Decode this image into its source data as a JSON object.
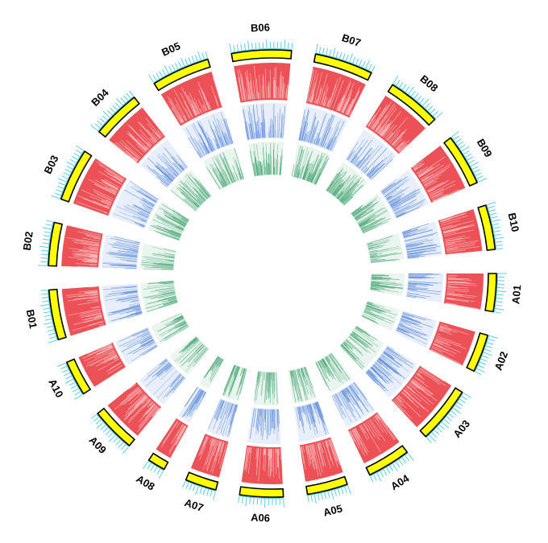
{
  "diagram": {
    "type": "circos",
    "colors": {
      "ideogram": "#ffff00",
      "ideogram_stroke": "#000000",
      "ticks": "#5fcde4",
      "track1": "#e8333a",
      "track2": "#4a7fd6",
      "track3": "#2f9a63"
    },
    "chromosomes": [
      {
        "label": "A01",
        "length": 28
      },
      {
        "label": "A02",
        "length": 28
      },
      {
        "label": "A03",
        "length": 42
      },
      {
        "label": "A04",
        "length": 32
      },
      {
        "label": "A05",
        "length": 30
      },
      {
        "label": "A06",
        "length": 32
      },
      {
        "label": "A07",
        "length": 23
      },
      {
        "label": "A08",
        "length": 13
      },
      {
        "label": "A09",
        "length": 33
      },
      {
        "label": "A10",
        "length": 26
      },
      {
        "label": "B01",
        "length": 37
      },
      {
        "label": "B02",
        "length": 32
      },
      {
        "label": "B03",
        "length": 39
      },
      {
        "label": "B04",
        "length": 36
      },
      {
        "label": "B05",
        "length": 43
      },
      {
        "label": "B06",
        "length": 44
      },
      {
        "label": "B07",
        "length": 43
      },
      {
        "label": "B08",
        "length": 40
      },
      {
        "label": "B09",
        "length": 38
      },
      {
        "label": "B10",
        "length": 33
      }
    ]
  }
}
